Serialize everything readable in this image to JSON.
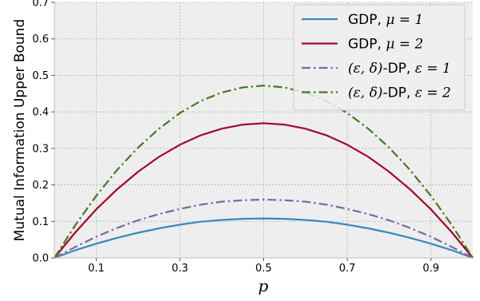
{
  "chart_data": {
    "type": "line",
    "xlabel": "p",
    "ylabel": "Mutual Information Upper Bound",
    "xlim": [
      0.0,
      1.0
    ],
    "ylim": [
      0.0,
      0.7
    ],
    "xticks": [
      "0.1",
      "0.3",
      "0.5",
      "0.7",
      "0.9"
    ],
    "yticks": [
      "0.0",
      "0.1",
      "0.2",
      "0.3",
      "0.4",
      "0.5",
      "0.6",
      "0.7"
    ],
    "grid": true,
    "legend_position": "top-right",
    "x": [
      0.0,
      0.05,
      0.1,
      0.15,
      0.2,
      0.25,
      0.3,
      0.35,
      0.4,
      0.45,
      0.5,
      0.55,
      0.6,
      0.65,
      0.7,
      0.75,
      0.8,
      0.85,
      0.9,
      0.95,
      1.0
    ],
    "series": [
      {
        "name": "GDP, μ = 1",
        "color": "#348abd",
        "style": "solid",
        "values": [
          0.0,
          0.021,
          0.039,
          0.055,
          0.069,
          0.081,
          0.091,
          0.099,
          0.104,
          0.107,
          0.108,
          0.107,
          0.104,
          0.099,
          0.091,
          0.081,
          0.069,
          0.055,
          0.039,
          0.021,
          0.0
        ]
      },
      {
        "name": "GDP, μ = 2",
        "color": "#a60628",
        "style": "solid",
        "values": [
          0.0,
          0.07,
          0.133,
          0.188,
          0.236,
          0.277,
          0.31,
          0.336,
          0.354,
          0.365,
          0.369,
          0.365,
          0.354,
          0.336,
          0.31,
          0.277,
          0.236,
          0.188,
          0.133,
          0.07,
          0.0
        ]
      },
      {
        "name": "(ε, δ)-DP, ε = 1",
        "color": "#7a68a6",
        "style": "dashdot",
        "values": [
          0.0,
          0.03,
          0.058,
          0.082,
          0.103,
          0.12,
          0.134,
          0.146,
          0.154,
          0.158,
          0.16,
          0.158,
          0.154,
          0.146,
          0.134,
          0.12,
          0.103,
          0.082,
          0.058,
          0.03,
          0.0
        ]
      },
      {
        "name": "(ε, δ)-DP, ε = 2",
        "color": "#467821",
        "style": "dashdot",
        "values": [
          0.0,
          0.09,
          0.17,
          0.241,
          0.302,
          0.354,
          0.397,
          0.43,
          0.453,
          0.467,
          0.472,
          0.467,
          0.453,
          0.43,
          0.397,
          0.354,
          0.302,
          0.241,
          0.17,
          0.09,
          0.0
        ]
      }
    ],
    "legend": [
      {
        "prefix": "GDP, ",
        "math": "μ = 1"
      },
      {
        "prefix": "GDP, ",
        "math": "μ = 2"
      },
      {
        "prefix_math": "(ε, δ)",
        "prefix": "-DP, ",
        "math": "ε = 1"
      },
      {
        "prefix_math": "(ε, δ)",
        "prefix": "-DP, ",
        "math": "ε = 2"
      }
    ]
  }
}
